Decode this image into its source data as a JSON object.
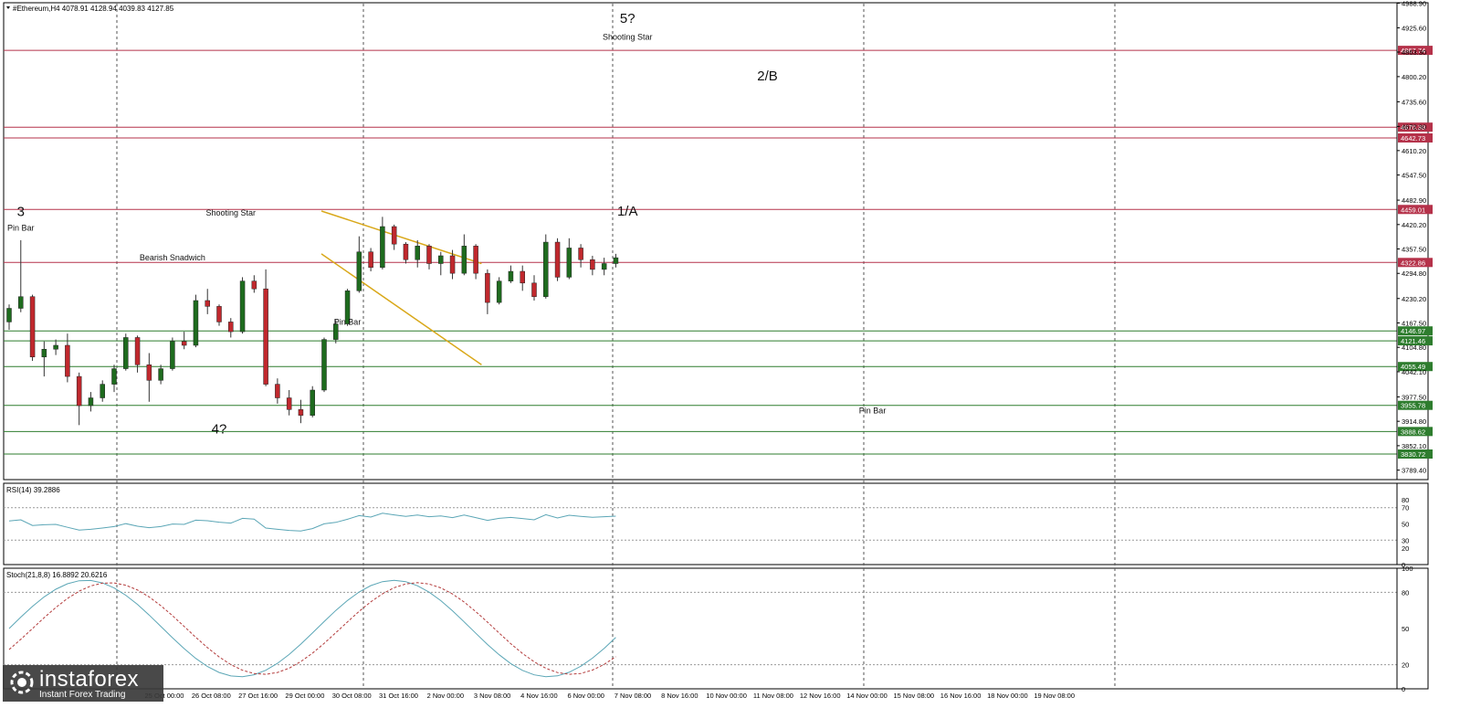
{
  "symbol_header": "#Ethereum,H4  4078.91 4128.94 4039.83 4127.85",
  "rsi_header": "RSI(14) 39.2886",
  "stoch_header": "Stoch(21,8,8) 16.8892 20.6216",
  "logo": {
    "name": "instaforex",
    "tagline": "Instant Forex Trading"
  },
  "colors": {
    "bull": "#1e6b1e",
    "bear": "#c0282d",
    "support": "#2e7d2e",
    "resistance": "#b5324a",
    "channel": "#d9a81a",
    "rsi": "#5ba6b6",
    "stoch_signal": "#b33b3b"
  },
  "chart_data": {
    "type": "candlestick",
    "price_axis": {
      "ylim": [
        3765,
        4990
      ],
      "ticks": [
        "4988.90",
        "4925.60",
        "4863.30",
        "4800.20",
        "4735.60",
        "4672.30",
        "4610.20",
        "4547.50",
        "4482.90",
        "4420.20",
        "4357.50",
        "4294.80",
        "4230.20",
        "4167.50",
        "4104.80",
        "4042.10",
        "3977.50",
        "3914.80",
        "3852.10",
        "3789.40"
      ]
    },
    "time_labels": [
      "25 Oct 00:00",
      "26 Oct 08:00",
      "27 Oct 16:00",
      "29 Oct 00:00",
      "30 Oct 08:00",
      "31 Oct 16:00",
      "2 Nov 00:00",
      "3 Nov 08:00",
      "4 Nov 16:00",
      "6 Nov 00:00",
      "7 Nov 08:00",
      "8 Nov 16:00",
      "10 Nov 00:00",
      "11 Nov 08:00",
      "12 Nov 16:00",
      "14 Nov 00:00",
      "15 Nov 08:00",
      "16 Nov 16:00",
      "18 Nov 00:00",
      "19 Nov 08:00"
    ],
    "levels": [
      {
        "price": 4867.74,
        "label": "4867.74",
        "kind": "resistance"
      },
      {
        "price": 4670.38,
        "label": "4670.38",
        "kind": "resistance"
      },
      {
        "price": 4642.73,
        "label": "4642.73",
        "kind": "resistance"
      },
      {
        "price": 4459.01,
        "label": "4459.01",
        "kind": "resistance"
      },
      {
        "price": 4322.86,
        "label": "4322.86",
        "kind": "resistance"
      },
      {
        "price": 4146.97,
        "label": "4146.97",
        "kind": "support"
      },
      {
        "price": 4121.46,
        "label": "4121.46",
        "kind": "support"
      },
      {
        "price": 4055.49,
        "label": "4055.49",
        "kind": "support"
      },
      {
        "price": 3955.78,
        "label": "3955.78",
        "kind": "support"
      },
      {
        "price": 3888.62,
        "label": "3888.62",
        "kind": "support"
      },
      {
        "price": 3830.72,
        "label": "3830.72",
        "kind": "support"
      }
    ],
    "current_price": 4127.85,
    "channel_lines": [
      {
        "from": [
          20,
          4455
        ],
        "to": [
          34,
          4320
        ]
      },
      {
        "from": [
          20,
          4345
        ],
        "to": [
          34,
          4060
        ]
      }
    ],
    "annotations": [
      {
        "text": "3",
        "bar": 1,
        "price": 4442,
        "size": "big"
      },
      {
        "text": "Pin Bar",
        "bar": 1,
        "price": 4405,
        "size": "small"
      },
      {
        "text": "Bearish Snadwich",
        "bar": 14,
        "price": 4328,
        "size": "small"
      },
      {
        "text": "4?",
        "bar": 18,
        "price": 3883,
        "size": "big"
      },
      {
        "text": "Shooting Star",
        "bar": 19,
        "price": 4443,
        "size": "small"
      },
      {
        "text": "Pin Bar",
        "bar": 29,
        "price": 4163,
        "size": "small"
      },
      {
        "text": "5?",
        "bar": 53,
        "price": 4938,
        "size": "big"
      },
      {
        "text": "Shooting Star",
        "bar": 53,
        "price": 4895,
        "size": "small"
      },
      {
        "text": "1/A",
        "bar": 53,
        "price": 4443,
        "size": "big"
      },
      {
        "text": "2/B",
        "bar": 65,
        "price": 4790,
        "size": "big"
      },
      {
        "text": "Pin Bar",
        "bar": 74,
        "price": 3935,
        "size": "small"
      }
    ],
    "candles": [
      [
        4170,
        4215,
        4150,
        4205
      ],
      [
        4205,
        4380,
        4195,
        4235
      ],
      [
        4235,
        4240,
        4070,
        4080
      ],
      [
        4080,
        4120,
        4030,
        4100
      ],
      [
        4100,
        4125,
        4085,
        4110
      ],
      [
        4110,
        4140,
        4015,
        4030
      ],
      [
        4030,
        4040,
        3905,
        3955
      ],
      [
        3955,
        3990,
        3940,
        3975
      ],
      [
        3975,
        4020,
        3965,
        4010
      ],
      [
        4010,
        4060,
        3990,
        4050
      ],
      [
        4050,
        4140,
        4045,
        4130
      ],
      [
        4130,
        4135,
        4040,
        4060
      ],
      [
        4060,
        4090,
        3965,
        4020
      ],
      [
        4020,
        4060,
        4010,
        4050
      ],
      [
        4050,
        4130,
        4045,
        4120
      ],
      [
        4120,
        4145,
        4100,
        4110
      ],
      [
        4110,
        4240,
        4105,
        4225
      ],
      [
        4225,
        4255,
        4190,
        4210
      ],
      [
        4210,
        4215,
        4160,
        4170
      ],
      [
        4170,
        4180,
        4130,
        4145
      ],
      [
        4145,
        4285,
        4140,
        4275
      ],
      [
        4275,
        4290,
        4245,
        4255
      ],
      [
        4255,
        4305,
        4005,
        4010
      ],
      [
        4010,
        4025,
        3960,
        3975
      ],
      [
        3975,
        3995,
        3930,
        3945
      ],
      [
        3945,
        3970,
        3910,
        3930
      ],
      [
        3930,
        4005,
        3925,
        3995
      ],
      [
        3995,
        4130,
        3990,
        4125
      ],
      [
        4125,
        4175,
        4115,
        4165
      ],
      [
        4165,
        4255,
        4160,
        4250
      ],
      [
        4250,
        4390,
        4245,
        4350
      ],
      [
        4350,
        4360,
        4300,
        4310
      ],
      [
        4310,
        4440,
        4305,
        4415
      ],
      [
        4415,
        4420,
        4355,
        4370
      ],
      [
        4370,
        4375,
        4320,
        4330
      ],
      [
        4330,
        4380,
        4310,
        4365
      ],
      [
        4365,
        4370,
        4305,
        4320
      ],
      [
        4320,
        4350,
        4290,
        4340
      ],
      [
        4340,
        4355,
        4280,
        4295
      ],
      [
        4295,
        4395,
        4290,
        4365
      ],
      [
        4365,
        4370,
        4280,
        4295
      ],
      [
        4295,
        4305,
        4190,
        4220
      ],
      [
        4220,
        4285,
        4215,
        4275
      ],
      [
        4275,
        4315,
        4270,
        4300
      ],
      [
        4300,
        4315,
        4250,
        4270
      ],
      [
        4270,
        4290,
        4225,
        4235
      ],
      [
        4235,
        4395,
        4230,
        4375
      ],
      [
        4375,
        4385,
        4275,
        4285
      ],
      [
        4285,
        4385,
        4280,
        4360
      ],
      [
        4360,
        4370,
        4310,
        4330
      ],
      [
        4330,
        4340,
        4290,
        4305
      ],
      [
        4305,
        4335,
        4290,
        4320
      ],
      [
        4320,
        4345,
        4310,
        4335
      ]
    ],
    "rsi": {
      "ylim": [
        0,
        100
      ],
      "levels": [
        80,
        70,
        50,
        30,
        20,
        0
      ],
      "last": 39.2886
    },
    "stoch": {
      "ylim": [
        0,
        100
      ],
      "levels": [
        100,
        80,
        50,
        20,
        0
      ],
      "main_last": 16.8892,
      "signal_last": 20.6216
    }
  }
}
